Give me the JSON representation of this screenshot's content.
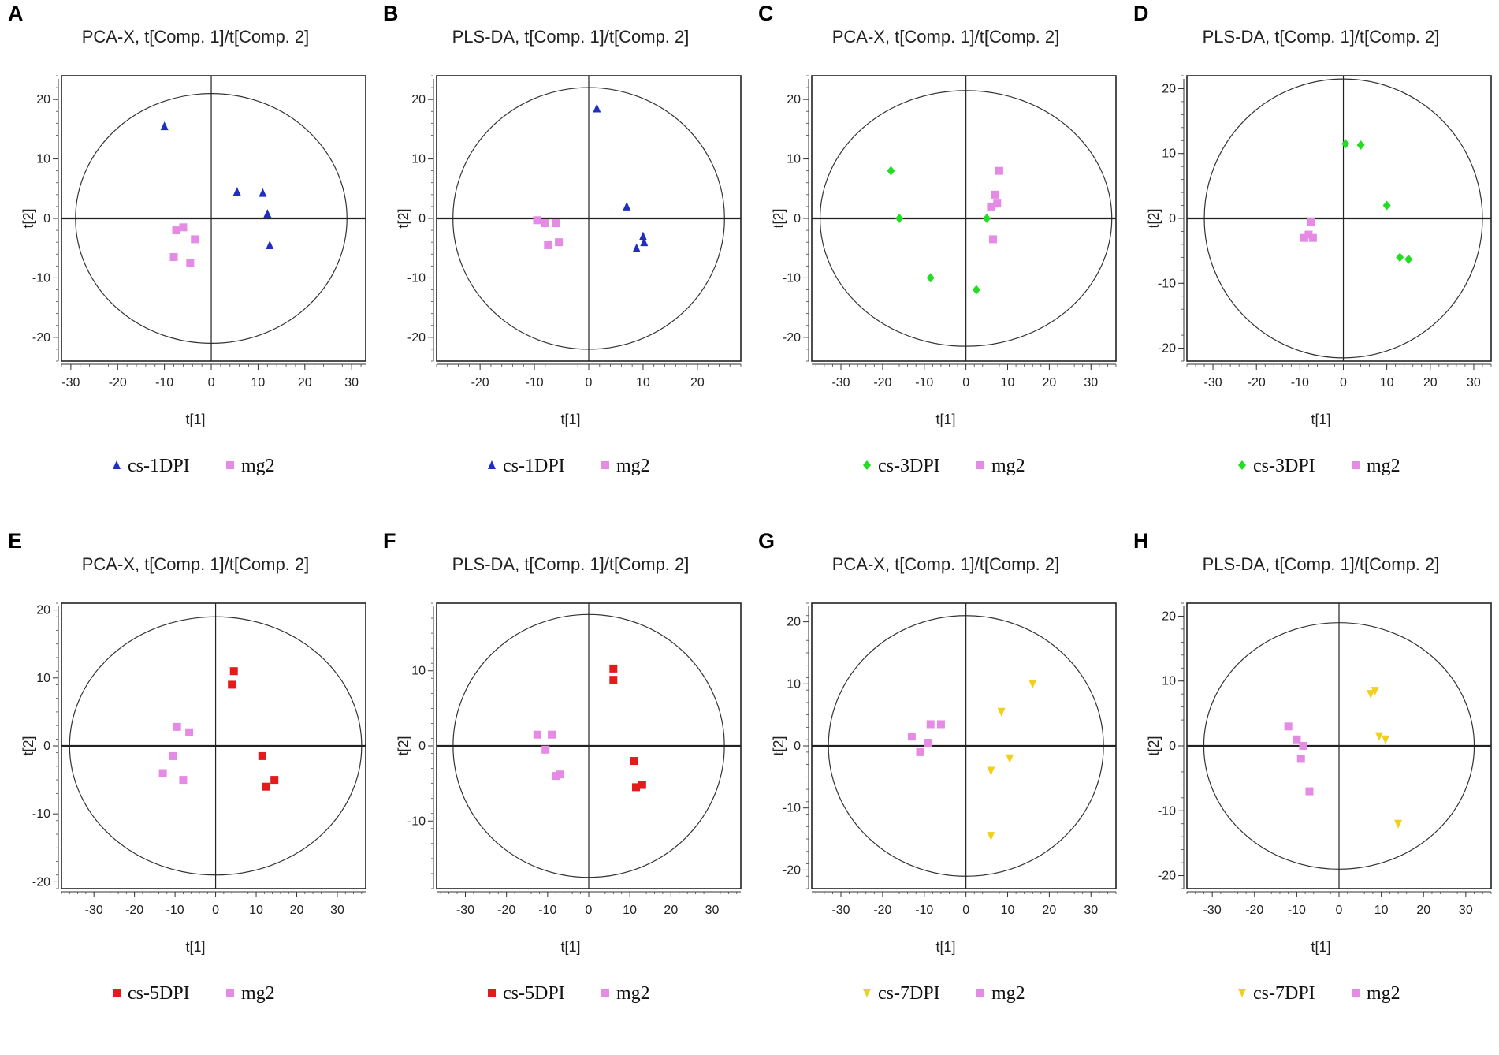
{
  "figure": {
    "panel_letters": [
      "A",
      "B",
      "C",
      "D",
      "E",
      "F",
      "G",
      "H"
    ]
  },
  "colors": {
    "cs1": "#1f2fbf",
    "cs3": "#22dd22",
    "cs5": "#e31b1b",
    "cs7": "#f2cf1a",
    "mg2": "#e58ae5"
  },
  "chart_data": [
    {
      "id": "A",
      "type": "scatter",
      "title": "PCA-X, t[Comp. 1]/t[Comp. 2]",
      "xlabel": "t[1]",
      "ylabel": "t[2]",
      "xlim": [
        -32,
        33
      ],
      "ylim": [
        -24,
        24
      ],
      "xticks": [
        -30,
        -20,
        -10,
        0,
        10,
        20,
        30
      ],
      "yticks": [
        -20,
        -10,
        0,
        10,
        20
      ],
      "ellipse": {
        "rx": 29,
        "ry": 21
      },
      "series": [
        {
          "name": "cs-1DPI",
          "marker": "triangle",
          "color": "#1f2fbf",
          "points": [
            [
              -10,
              15.5
            ],
            [
              5.5,
              4.5
            ],
            [
              11,
              4.3
            ],
            [
              12,
              0.8
            ],
            [
              12.5,
              -4.5
            ]
          ]
        },
        {
          "name": "mg2",
          "marker": "square",
          "color": "#e58ae5",
          "points": [
            [
              -7.5,
              -2
            ],
            [
              -6,
              -1.5
            ],
            [
              -3.5,
              -3.5
            ],
            [
              -8,
              -6.5
            ],
            [
              -4.5,
              -7.5
            ]
          ]
        }
      ]
    },
    {
      "id": "B",
      "type": "scatter",
      "title": "PLS-DA, t[Comp. 1]/t[Comp. 2]",
      "xlabel": "t[1]",
      "ylabel": "t[2]",
      "xlim": [
        -28,
        28
      ],
      "ylim": [
        -24,
        24
      ],
      "xticks": [
        -20,
        -10,
        0,
        10,
        20
      ],
      "yticks": [
        -20,
        -10,
        0,
        10,
        20
      ],
      "ellipse": {
        "rx": 25,
        "ry": 22
      },
      "series": [
        {
          "name": "cs-1DPI",
          "marker": "triangle",
          "color": "#1f2fbf",
          "points": [
            [
              1.5,
              18.5
            ],
            [
              7,
              2
            ],
            [
              10,
              -3
            ],
            [
              10.2,
              -4
            ],
            [
              8.8,
              -5
            ]
          ]
        },
        {
          "name": "mg2",
          "marker": "square",
          "color": "#e58ae5",
          "points": [
            [
              -9.5,
              -0.3
            ],
            [
              -8,
              -0.8
            ],
            [
              -6,
              -0.8
            ],
            [
              -7.5,
              -4.5
            ],
            [
              -5.5,
              -4
            ]
          ]
        }
      ]
    },
    {
      "id": "C",
      "type": "scatter",
      "title": "PCA-X, t[Comp. 1]/t[Comp. 2]",
      "xlabel": "t[1]",
      "ylabel": "t[2]",
      "xlim": [
        -37,
        36
      ],
      "ylim": [
        -24,
        24
      ],
      "xticks": [
        -30,
        -20,
        -10,
        0,
        10,
        20,
        30
      ],
      "yticks": [
        -20,
        -10,
        0,
        10,
        20
      ],
      "ellipse": {
        "rx": 35,
        "ry": 21.5
      },
      "series": [
        {
          "name": "cs-3DPI",
          "marker": "diamond",
          "color": "#22dd22",
          "points": [
            [
              -18,
              8
            ],
            [
              -16,
              0
            ],
            [
              5,
              0
            ],
            [
              -8.5,
              -10
            ],
            [
              2.5,
              -12
            ]
          ]
        },
        {
          "name": "mg2",
          "marker": "square",
          "color": "#e58ae5",
          "points": [
            [
              8,
              8
            ],
            [
              7,
              4
            ],
            [
              6,
              2
            ],
            [
              7.5,
              2.5
            ],
            [
              6.5,
              -3.5
            ]
          ]
        }
      ]
    },
    {
      "id": "D",
      "type": "scatter",
      "title": "PLS-DA, t[Comp. 1]/t[Comp. 2]",
      "xlabel": "t[1]",
      "ylabel": "t[2]",
      "xlim": [
        -36,
        34
      ],
      "ylim": [
        -22,
        22
      ],
      "xticks": [
        -30,
        -20,
        -10,
        0,
        10,
        20,
        30
      ],
      "yticks": [
        -20,
        -10,
        0,
        10,
        20
      ],
      "ellipse": {
        "rx": 32,
        "ry": 21.5
      },
      "series": [
        {
          "name": "cs-3DPI",
          "marker": "diamond",
          "color": "#22dd22",
          "points": [
            [
              0.5,
              11.5
            ],
            [
              4,
              11.3
            ],
            [
              10,
              2
            ],
            [
              13,
              -6
            ],
            [
              15,
              -6.3
            ]
          ]
        },
        {
          "name": "mg2",
          "marker": "square",
          "color": "#e58ae5",
          "points": [
            [
              -7.5,
              -0.5
            ],
            [
              -9,
              -3
            ],
            [
              -8,
              -2.5
            ],
            [
              -7,
              -3
            ]
          ]
        }
      ]
    },
    {
      "id": "E",
      "type": "scatter",
      "title": "PCA-X, t[Comp. 1]/t[Comp. 2]",
      "xlabel": "t[1]",
      "ylabel": "t[2]",
      "xlim": [
        -38,
        37
      ],
      "ylim": [
        -21,
        21
      ],
      "xticks": [
        -30,
        -20,
        -10,
        0,
        10,
        20,
        30
      ],
      "yticks": [
        -20,
        -10,
        0,
        10,
        20
      ],
      "ellipse": {
        "rx": 36,
        "ry": 19
      },
      "series": [
        {
          "name": "cs-5DPI",
          "marker": "square",
          "color": "#e31b1b",
          "points": [
            [
              4.5,
              11
            ],
            [
              4,
              9
            ],
            [
              11.5,
              -1.5
            ],
            [
              14.5,
              -5
            ],
            [
              12.5,
              -6
            ]
          ]
        },
        {
          "name": "mg2",
          "marker": "square",
          "color": "#e58ae5",
          "points": [
            [
              -9.5,
              2.8
            ],
            [
              -6.5,
              2
            ],
            [
              -10.5,
              -1.5
            ],
            [
              -13,
              -4
            ],
            [
              -8,
              -5
            ]
          ]
        }
      ]
    },
    {
      "id": "F",
      "type": "scatter",
      "title": "PLS-DA, t[Comp. 1]/t[Comp. 2]",
      "xlabel": "t[1]",
      "ylabel": "t[2]",
      "xlim": [
        -37,
        37
      ],
      "ylim": [
        -19,
        19
      ],
      "xticks": [
        -30,
        -20,
        -10,
        0,
        10,
        20,
        30
      ],
      "yticks": [
        -10,
        0,
        10
      ],
      "ellipse": {
        "rx": 33,
        "ry": 17.5
      },
      "series": [
        {
          "name": "cs-5DPI",
          "marker": "square",
          "color": "#e31b1b",
          "points": [
            [
              6,
              10.3
            ],
            [
              6,
              8.8
            ],
            [
              11,
              -2
            ],
            [
              13,
              -5.2
            ],
            [
              11.5,
              -5.5
            ]
          ]
        },
        {
          "name": "mg2",
          "marker": "square",
          "color": "#e58ae5",
          "points": [
            [
              -12.5,
              1.5
            ],
            [
              -9,
              1.5
            ],
            [
              -10.5,
              -0.5
            ],
            [
              -8,
              -4
            ],
            [
              -7,
              -3.8
            ]
          ]
        }
      ]
    },
    {
      "id": "G",
      "type": "scatter",
      "title": "PCA-X, t[Comp. 1]/t[Comp. 2]",
      "xlabel": "t[1]",
      "ylabel": "t[2]",
      "xlim": [
        -37,
        36
      ],
      "ylim": [
        -23,
        23
      ],
      "xticks": [
        -30,
        -20,
        -10,
        0,
        10,
        20,
        30
      ],
      "yticks": [
        -20,
        -10,
        0,
        10,
        20
      ],
      "ellipse": {
        "rx": 33,
        "ry": 21
      },
      "series": [
        {
          "name": "cs-7DPI",
          "marker": "triangle-down",
          "color": "#f2cf1a",
          "points": [
            [
              16,
              10
            ],
            [
              8.5,
              5.5
            ],
            [
              6,
              -4
            ],
            [
              10.5,
              -2
            ],
            [
              6,
              -14.5
            ]
          ]
        },
        {
          "name": "mg2",
          "marker": "square",
          "color": "#e58ae5",
          "points": [
            [
              -8.5,
              3.5
            ],
            [
              -6,
              3.5
            ],
            [
              -13,
              1.5
            ],
            [
              -9,
              0.5
            ],
            [
              -11,
              -1
            ]
          ]
        }
      ]
    },
    {
      "id": "H",
      "type": "scatter",
      "title": "PLS-DA, t[Comp. 1]/t[Comp. 2]",
      "xlabel": "t[1]",
      "ylabel": "t[2]",
      "xlim": [
        -36,
        36
      ],
      "ylim": [
        -22,
        22
      ],
      "xticks": [
        -30,
        -20,
        -10,
        0,
        10,
        20,
        30
      ],
      "yticks": [
        -20,
        -10,
        0,
        10,
        20
      ],
      "ellipse": {
        "rx": 32,
        "ry": 19
      },
      "series": [
        {
          "name": "cs-7DPI",
          "marker": "triangle-down",
          "color": "#f2cf1a",
          "points": [
            [
              8.5,
              8.5
            ],
            [
              7.5,
              8
            ],
            [
              9.5,
              1.5
            ],
            [
              11,
              1
            ],
            [
              14,
              -12
            ]
          ]
        },
        {
          "name": "mg2",
          "marker": "square",
          "color": "#e58ae5",
          "points": [
            [
              -12,
              3
            ],
            [
              -10,
              1
            ],
            [
              -8.5,
              0
            ],
            [
              -9,
              -2
            ],
            [
              -7,
              -7
            ]
          ]
        }
      ]
    }
  ]
}
